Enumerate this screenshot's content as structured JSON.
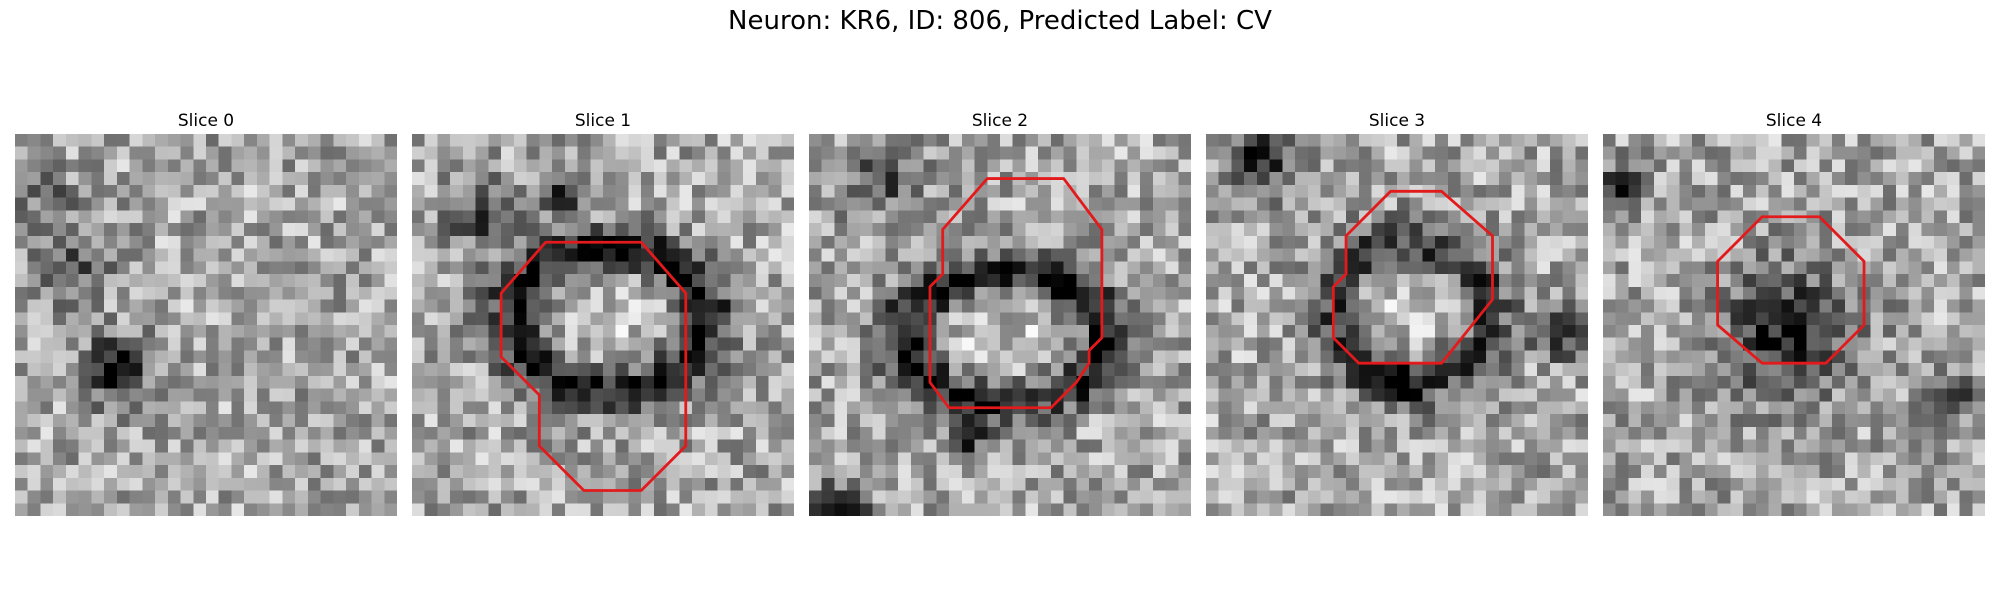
{
  "figure": {
    "title": "Neuron: KR6, ID: 806, Predicted Label: CV"
  },
  "panels": [
    {
      "title": "Slice 0",
      "dark_spots": [
        [
          7.5,
          18.0,
          1.8,
          0.6
        ],
        [
          4.0,
          10.0,
          2.0,
          0.35
        ],
        [
          2.0,
          4.5,
          1.5,
          0.25
        ]
      ],
      "contour": []
    },
    {
      "title": "Slice 1",
      "dark_spots": [
        [
          11.0,
          4.5,
          1.0,
          0.6
        ],
        [
          5.0,
          6.0,
          2.0,
          0.35
        ]
      ],
      "ring": [
        15.0,
        14.0,
        7.5,
        5.5,
        1.8,
        0.55
      ],
      "contour": [
        [
          10.5,
          8.5
        ],
        [
          18.0,
          8.5
        ],
        [
          21.5,
          12.5
        ],
        [
          21.5,
          24.5
        ],
        [
          18.0,
          28.0
        ],
        [
          13.5,
          28.0
        ],
        [
          10.0,
          24.5
        ],
        [
          10.0,
          20.5
        ],
        [
          7.0,
          17.5
        ],
        [
          7.0,
          12.5
        ]
      ]
    },
    {
      "title": "Slice 2",
      "dark_spots": [
        [
          12.0,
          23.0,
          1.2,
          0.6
        ],
        [
          2.0,
          29.0,
          1.5,
          0.55
        ],
        [
          5.0,
          3.0,
          2.0,
          0.4
        ]
      ],
      "ring": [
        15.0,
        15.5,
        8.0,
        5.0,
        1.8,
        0.55
      ],
      "contour": [
        [
          14.0,
          3.5
        ],
        [
          20.0,
          3.5
        ],
        [
          23.0,
          7.5
        ],
        [
          23.0,
          16.0
        ],
        [
          22.0,
          17.0
        ],
        [
          22.0,
          18.0
        ],
        [
          21.0,
          19.5
        ],
        [
          19.0,
          21.5
        ],
        [
          11.0,
          21.5
        ],
        [
          9.5,
          19.5
        ],
        [
          9.5,
          12.0
        ],
        [
          10.5,
          11.0
        ],
        [
          10.5,
          7.5
        ]
      ]
    },
    {
      "title": "Slice 3",
      "dark_spots": [
        [
          3.5,
          1.5,
          1.8,
          0.6
        ],
        [
          27.5,
          15.0,
          1.5,
          0.55
        ],
        [
          14.5,
          19.0,
          1.2,
          0.45
        ]
      ],
      "ring": [
        15.5,
        13.5,
        6.0,
        5.5,
        1.6,
        0.4
      ],
      "contour": [
        [
          14.5,
          4.5
        ],
        [
          18.5,
          4.5
        ],
        [
          22.5,
          8.0
        ],
        [
          22.5,
          13.0
        ],
        [
          18.5,
          18.0
        ],
        [
          12.0,
          18.0
        ],
        [
          10.0,
          16.0
        ],
        [
          10.0,
          12.0
        ],
        [
          11.0,
          11.0
        ],
        [
          11.0,
          8.0
        ]
      ]
    },
    {
      "title": "Slice 4",
      "dark_spots": [
        [
          14.0,
          15.0,
          3.5,
          0.55
        ],
        [
          27.0,
          20.0,
          1.5,
          0.35
        ],
        [
          1.0,
          3.5,
          1.2,
          0.45
        ]
      ],
      "contour": [
        [
          12.5,
          6.5
        ],
        [
          17.0,
          6.5
        ],
        [
          20.5,
          10.0
        ],
        [
          20.5,
          15.0
        ],
        [
          17.5,
          18.0
        ],
        [
          12.5,
          18.0
        ],
        [
          9.0,
          15.0
        ],
        [
          9.0,
          10.0
        ]
      ]
    }
  ],
  "colors": {
    "contour": "#e31a1c"
  }
}
